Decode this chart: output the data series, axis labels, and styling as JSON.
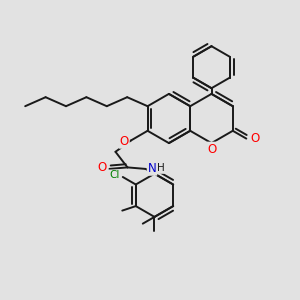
{
  "bg_color": "#e2e2e2",
  "bond_color": "#1a1a1a",
  "bond_width": 1.4,
  "atom_colors": {
    "O": "#ff0000",
    "N": "#0000cd",
    "Cl": "#008000",
    "C": "#1a1a1a",
    "H": "#1a1a1a"
  },
  "font_size": 7.0
}
